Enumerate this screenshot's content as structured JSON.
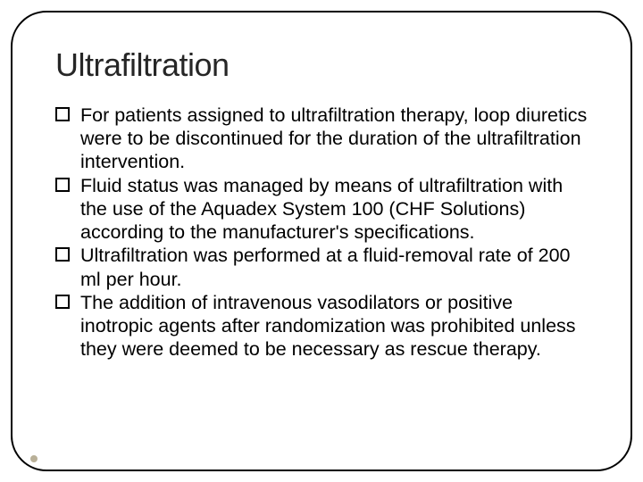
{
  "slide": {
    "title": "Ultrafiltration",
    "title_color": "#262626",
    "title_fontsize": 36,
    "body_fontsize": 21.5,
    "body_color": "#000000",
    "border_color": "#000000",
    "border_radius": 40,
    "background_color": "#ffffff",
    "bullet_marker": {
      "shape": "square-outline",
      "size": 16,
      "border_color": "#000000",
      "fill": "#ffffff"
    },
    "footer_dot_color": "#b9b098",
    "bullets": [
      "For patients assigned to ultrafiltration therapy, loop diuretics were to be discontinued for the duration of the ultrafiltration intervention.",
      "Fluid status was managed by means of ultrafiltration with the use of the Aquadex System 100 (CHF Solutions) according to the manufacturer's specifications.",
      "Ultrafiltration was performed at a fluid-removal rate of 200 ml per hour.",
      "The addition of intravenous vasodilators or positive inotropic agents after randomization was prohibited unless they were deemed to be necessary as rescue therapy."
    ]
  }
}
